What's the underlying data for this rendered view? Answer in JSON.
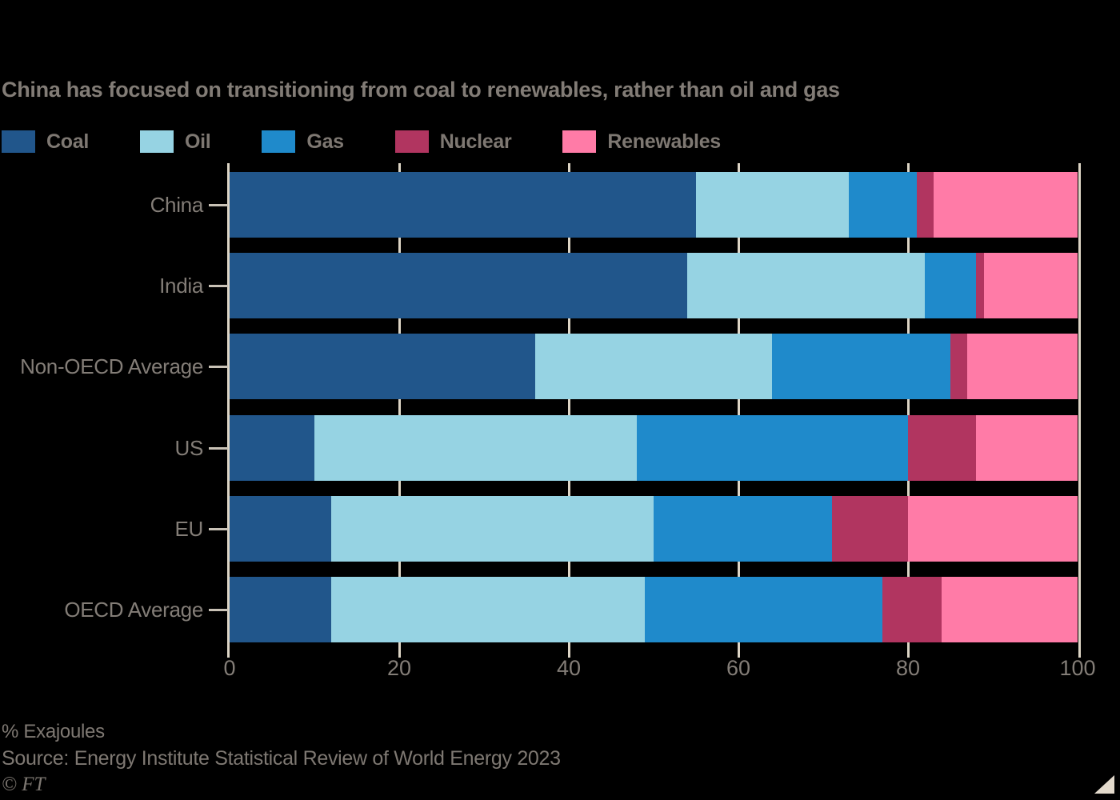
{
  "title": "China has focused on transitioning from coal to renewables, rather than oil and gas",
  "chart_data": {
    "type": "bar",
    "stacked": true,
    "orientation": "horizontal",
    "title": "China has focused on transitioning from coal to renewables, rather than oil and gas",
    "unit": "% Exajoules",
    "categories": [
      "China",
      "India",
      "Non-OECD Average",
      "US",
      "EU",
      "OECD Average"
    ],
    "series": [
      {
        "name": "Coal",
        "color": "#21568B",
        "values": [
          55,
          54,
          36,
          10,
          12,
          12
        ]
      },
      {
        "name": "Oil",
        "color": "#96D3E3",
        "values": [
          18,
          28,
          28,
          38,
          38,
          37
        ]
      },
      {
        "name": "Gas",
        "color": "#1F8ACB",
        "values": [
          8,
          6,
          21,
          32,
          21,
          28
        ]
      },
      {
        "name": "Nuclear",
        "color": "#B13560",
        "values": [
          2,
          1,
          2,
          8,
          9,
          7
        ]
      },
      {
        "name": "Renewables",
        "color": "#FF7BA7",
        "values": [
          17,
          11,
          13,
          12,
          20,
          16
        ]
      }
    ],
    "x_axis": {
      "range": [
        0,
        100
      ],
      "ticks": [
        0,
        20,
        40,
        60,
        80,
        100
      ],
      "tick_labels": [
        "0",
        "20",
        "40",
        "60",
        "80",
        "100"
      ]
    },
    "grid": true,
    "legend_position": "top"
  },
  "legend": {
    "items": [
      "Coal",
      "Oil",
      "Gas",
      "Nuclear",
      "Renewables"
    ]
  },
  "footer": {
    "unit_label": "% Exajoules",
    "source": "Source: Energy Institute Statistical Review of World Energy 2023",
    "credit": "© FT"
  },
  "colors": {
    "background": "#000000",
    "gridline": "#DCD4C5",
    "text": "#7E7872",
    "coal": "#21568B",
    "oil": "#96D3E3",
    "gas": "#1F8ACB",
    "nuclear": "#B13560",
    "renewables": "#FF7BA7",
    "corner_triangle": "#E3DACC"
  }
}
